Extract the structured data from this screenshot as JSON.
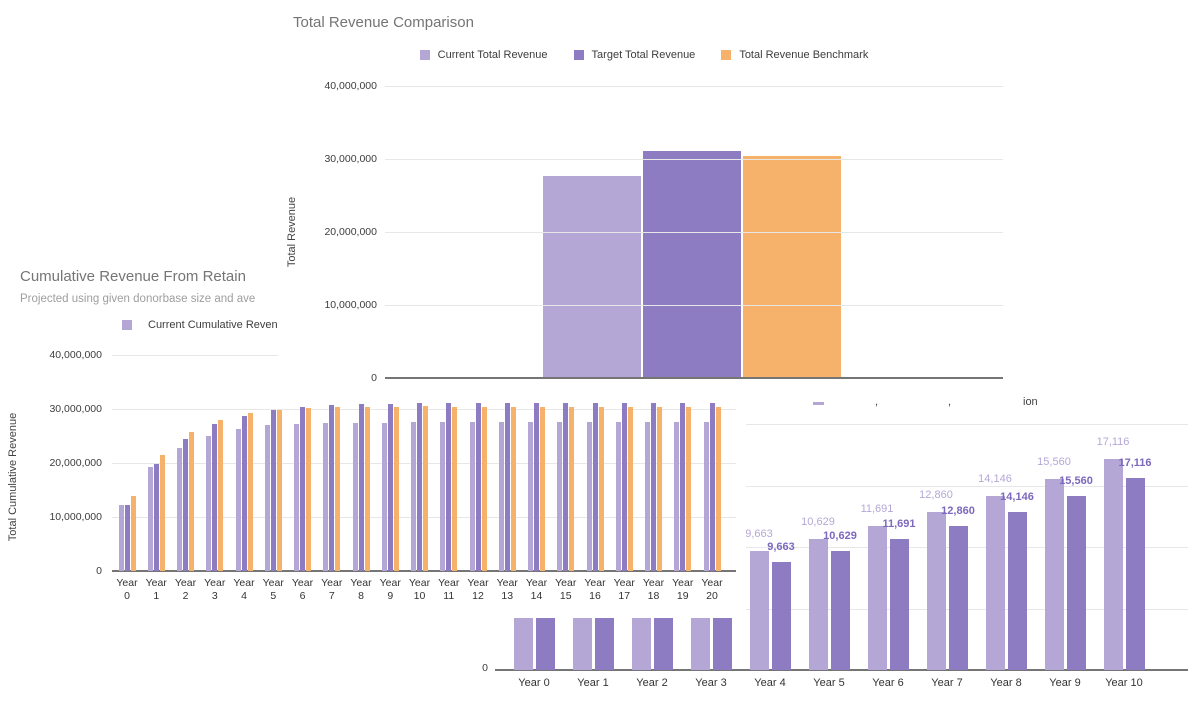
{
  "palette": {
    "light_purple": "#b4a7d6",
    "purple": "#8e7cc3",
    "orange": "#f6b26b",
    "title_gray": "#757575",
    "subtitle_gray": "#9e9e9e",
    "grid_gray": "#e7e7e7",
    "axis_gray": "#757575",
    "tick_text": "#3d3d3d",
    "label_text": "#333333",
    "dark_label_purple": "#7c68bd"
  },
  "chart_data": [
    {
      "id": "total_revenue_comparison",
      "type": "bar",
      "title": "Total Revenue Comparison",
      "xlabel": "",
      "ylabel": "Total Revenue",
      "ylim": [
        0,
        40000000
      ],
      "grid": true,
      "legend_position": "top",
      "ytick_labels": [
        "0",
        "10,000,000",
        "20,000,000",
        "30,000,000",
        "40,000,000"
      ],
      "ytick_values": [
        0,
        10000000,
        20000000,
        30000000,
        40000000
      ],
      "categories": [
        ""
      ],
      "series": [
        {
          "name": "Current Total Revenue",
          "color": "#b4a7d6",
          "values": [
            27700000
          ]
        },
        {
          "name": "Target Total Revenue",
          "color": "#8e7cc3",
          "values": [
            31100000
          ]
        },
        {
          "name": "Total Revenue Benchmark",
          "color": "#f6b26b",
          "values": [
            30400000
          ]
        }
      ]
    },
    {
      "id": "cumulative_revenue",
      "type": "bar",
      "title": "Cumulative Revenue From Retain",
      "title_truncated_by_overlap": true,
      "subtitle": "Projected using given donorbase size and ave",
      "subtitle_truncated_by_overlap": true,
      "xlabel": "",
      "ylabel": "Total Cumulative Revenue",
      "ylim": [
        0,
        40000000
      ],
      "grid": true,
      "legend_position": "top",
      "ytick_labels": [
        "0",
        "10,000,000",
        "20,000,000",
        "30,000,000",
        "40,000,000"
      ],
      "ytick_values": [
        0,
        10000000,
        20000000,
        30000000,
        40000000
      ],
      "categories": [
        "Year 0",
        "Year 1",
        "Year 2",
        "Year 3",
        "Year 4",
        "Year 5",
        "Year 6",
        "Year 7",
        "Year 8",
        "Year 9",
        "Year 10",
        "Year 11",
        "Year 12",
        "Year 13",
        "Year 14",
        "Year 15",
        "Year 16",
        "Year 17",
        "Year 18",
        "Year 19",
        "Year 20"
      ],
      "series": [
        {
          "name": "Current Cumulative Revenue",
          "legend_visible": true,
          "color": "#b4a7d6",
          "values": [
            12200000,
            19300000,
            22800000,
            25000000,
            26300000,
            27000000,
            27200000,
            27350000,
            27450000,
            27500000,
            27550000,
            27600000,
            27600000,
            27600000,
            27600000,
            27600000,
            27600000,
            27600000,
            27600000,
            27600000,
            27600000
          ]
        },
        {
          "name": "",
          "legend_visible": false,
          "color": "#8e7cc3",
          "values": [
            12200000,
            19800000,
            24400000,
            27200000,
            28700000,
            29800000,
            30300000,
            30650000,
            30850000,
            31000000,
            31100000,
            31150000,
            31200000,
            31200000,
            31200000,
            31200000,
            31200000,
            31200000,
            31200000,
            31200000,
            31200000
          ]
        },
        {
          "name": "",
          "legend_visible": false,
          "color": "#f6b26b",
          "values": [
            13900000,
            21500000,
            25700000,
            27900000,
            29200000,
            29800000,
            30100000,
            30300000,
            30400000,
            30450000,
            30500000,
            30450000,
            30450000,
            30450000,
            30450000,
            30450000,
            30450000,
            30450000,
            30450000,
            30450000,
            30450000
          ]
        }
      ]
    },
    {
      "id": "per_donor_projection",
      "type": "bar",
      "title": "",
      "note": "title and legend mostly hidden behind overlapping charts",
      "ylim": [
        0,
        20000
      ],
      "grid": true,
      "ytick_labels_visible": [
        "0"
      ],
      "legend_fragments": [
        ",",
        ",",
        "ion"
      ],
      "categories": [
        "Year 0",
        "Year 1",
        "Year 2",
        "Year 3",
        "Year 4",
        "Year 5",
        "Year 6",
        "Year 7",
        "Year 8",
        "Year 9",
        "Year 10"
      ],
      "values": [
        null,
        null,
        null,
        null,
        9663,
        10629,
        11691,
        12860,
        14146,
        15560,
        17116
      ],
      "data_labels": [
        null,
        null,
        null,
        null,
        "9,663",
        "10,629",
        "11,691",
        "12,860",
        "14,146",
        "15,560",
        "17,116"
      ],
      "series": [
        {
          "name": "",
          "color": "#b4a7d6"
        },
        {
          "name": "",
          "color": "#8e7cc3"
        }
      ]
    }
  ]
}
